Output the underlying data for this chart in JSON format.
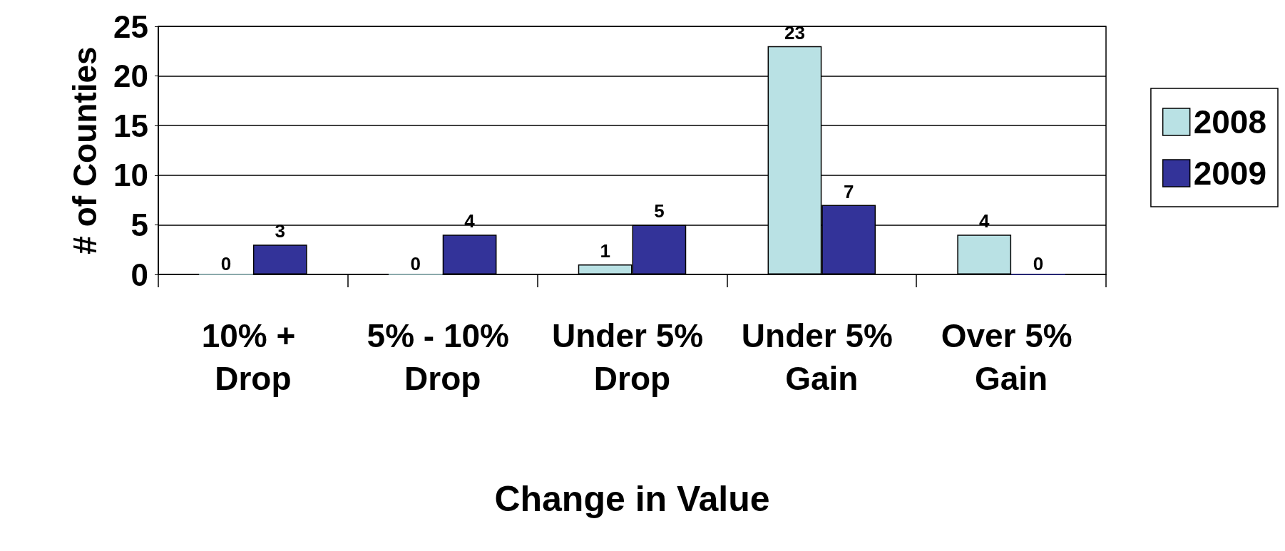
{
  "chart_data": {
    "type": "bar",
    "xlabel": "Change in Value",
    "ylabel": "# of Counties",
    "categories": [
      "10% + Drop",
      "5% - 10% Drop",
      "Under 5% Drop",
      "Under 5% Gain",
      "Over 5% Gain"
    ],
    "series": [
      {
        "name": "2008",
        "color": "#b9e1e4",
        "values": [
          0,
          0,
          1,
          23,
          4
        ]
      },
      {
        "name": "2009",
        "color": "#333399",
        "values": [
          3,
          4,
          5,
          7,
          0
        ]
      }
    ],
    "ylim": [
      0,
      25
    ],
    "yticks": [
      0,
      5,
      10,
      15,
      20,
      25
    ],
    "grid": "y",
    "legend": "right",
    "data_labels": true
  }
}
